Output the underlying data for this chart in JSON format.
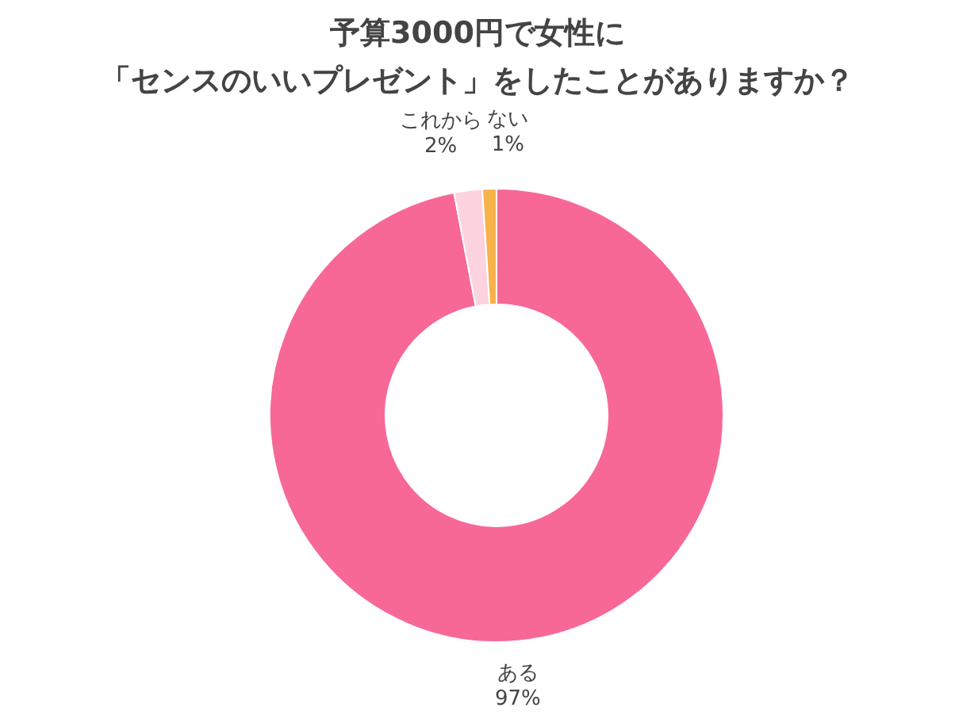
{
  "chart_data": {
    "type": "donut",
    "title": "予算3000円で女性に",
    "subtitle": "「センスのいいプレゼント」をしたことがありますか？",
    "categories": [
      "ある",
      "これから",
      "ない"
    ],
    "values": [
      97,
      2,
      1
    ],
    "colors": [
      "#f76896",
      "#fdd3df",
      "#f7b24a"
    ],
    "value_labels": [
      "97%",
      "2%",
      "1%"
    ]
  }
}
